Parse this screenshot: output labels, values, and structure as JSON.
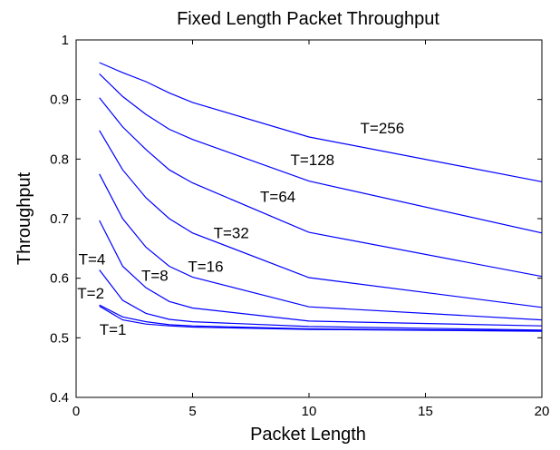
{
  "chart_data": {
    "type": "line",
    "title": "Fixed Length Packet Throughput",
    "xlabel": "Packet Length",
    "ylabel": "Throughput",
    "xlim": [
      0,
      20
    ],
    "ylim": [
      0.4,
      1
    ],
    "xticks": [
      "0",
      "5",
      "10",
      "15",
      "20"
    ],
    "yticks": [
      "0.4",
      "0.5",
      "0.6",
      "0.7",
      "0.8",
      "0.9",
      "1"
    ],
    "grid": false,
    "line_color": "#0000ff",
    "x": [
      1,
      2,
      3,
      4,
      5,
      10,
      20
    ],
    "series": [
      {
        "name": "T=1",
        "values": [
          0.553,
          0.53,
          0.523,
          0.52,
          0.518,
          0.514,
          0.511
        ]
      },
      {
        "name": "T=2",
        "values": [
          0.555,
          0.535,
          0.527,
          0.522,
          0.52,
          0.515,
          0.512
        ]
      },
      {
        "name": "T=4",
        "values": [
          0.614,
          0.563,
          0.541,
          0.531,
          0.527,
          0.519,
          0.513
        ]
      },
      {
        "name": "T=8",
        "values": [
          0.697,
          0.62,
          0.584,
          0.561,
          0.55,
          0.528,
          0.52
        ]
      },
      {
        "name": "T=16",
        "values": [
          0.775,
          0.7,
          0.652,
          0.62,
          0.602,
          0.552,
          0.53
        ]
      },
      {
        "name": "T=32",
        "values": [
          0.848,
          0.782,
          0.735,
          0.7,
          0.676,
          0.601,
          0.551
        ]
      },
      {
        "name": "T=64",
        "values": [
          0.903,
          0.854,
          0.816,
          0.782,
          0.76,
          0.677,
          0.603
        ]
      },
      {
        "name": "T=128",
        "values": [
          0.943,
          0.905,
          0.875,
          0.85,
          0.833,
          0.763,
          0.676
        ]
      },
      {
        "name": "T=256",
        "values": [
          0.962,
          0.945,
          0.93,
          0.911,
          0.895,
          0.837,
          0.762
        ]
      }
    ],
    "annotations": [
      {
        "text": "T=256",
        "x": 12.2,
        "y": 0.843
      },
      {
        "text": "T=128",
        "x": 9.2,
        "y": 0.79
      },
      {
        "text": "T=64",
        "x": 7.9,
        "y": 0.728
      },
      {
        "text": "T=32",
        "x": 5.9,
        "y": 0.667
      },
      {
        "text": "T=16",
        "x": 4.8,
        "y": 0.611
      },
      {
        "text": "T=8",
        "x": 2.8,
        "y": 0.596
      },
      {
        "text": "T=4",
        "x": 0.1,
        "y": 0.623
      },
      {
        "text": "T=2",
        "x": 0.05,
        "y": 0.566
      },
      {
        "text": "T=1",
        "x": 1.0,
        "y": 0.505
      }
    ]
  }
}
